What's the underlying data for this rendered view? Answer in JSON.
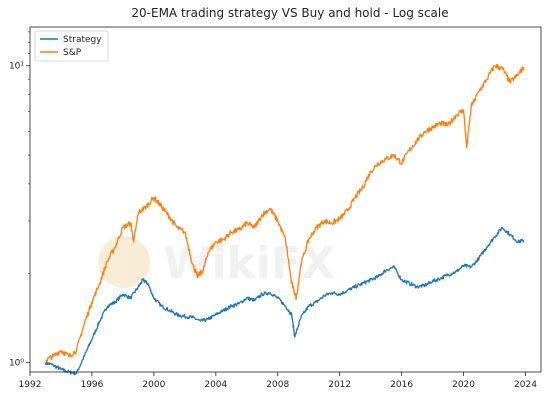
{
  "chart_data": {
    "type": "line",
    "title": "20-EMA trading strategy VS Buy and hold - Log scale",
    "xlabel": "",
    "ylabel": "",
    "xlim": [
      1992.0,
      2025.0
    ],
    "ylim": [
      0.93,
      13.5
    ],
    "y_scale": "log",
    "grid": false,
    "legend_position": "top-left",
    "x_ticks": [
      1992,
      1996,
      2000,
      2004,
      2008,
      2012,
      2016,
      2020,
      2024
    ],
    "x_tick_labels": [
      "1992",
      "1996",
      "2000",
      "2004",
      "2008",
      "2012",
      "2016",
      "2020",
      "2024"
    ],
    "y_ticks": [
      1,
      10
    ],
    "y_tick_labels": [
      "10⁰",
      "10¹"
    ],
    "series": [
      {
        "name": "Strategy",
        "color": "#1f77b4",
        "x": [
          1993.0,
          1993.5,
          1994.0,
          1994.5,
          1995.0,
          1995.5,
          1996.0,
          1996.5,
          1997.0,
          1997.5,
          1998.0,
          1998.5,
          1999.0,
          1999.3,
          1999.6,
          2000.0,
          2000.5,
          2001.0,
          2001.5,
          2002.0,
          2002.5,
          2003.0,
          2003.5,
          2004.0,
          2004.5,
          2005.0,
          2005.5,
          2006.0,
          2006.5,
          2007.0,
          2007.5,
          2008.0,
          2008.5,
          2008.9,
          2009.1,
          2009.5,
          2010.0,
          2010.5,
          2011.0,
          2011.5,
          2012.0,
          2012.5,
          2013.0,
          2013.5,
          2014.0,
          2014.5,
          2015.0,
          2015.5,
          2016.0,
          2016.5,
          2017.0,
          2017.5,
          2018.0,
          2018.5,
          2019.0,
          2019.5,
          2020.0,
          2020.5,
          2021.0,
          2021.5,
          2022.0,
          2022.5,
          2023.0,
          2023.5,
          2023.9
        ],
        "y": [
          1.0,
          0.98,
          0.95,
          0.93,
          0.92,
          1.05,
          1.2,
          1.38,
          1.55,
          1.6,
          1.7,
          1.65,
          1.8,
          1.9,
          1.85,
          1.65,
          1.55,
          1.5,
          1.45,
          1.43,
          1.42,
          1.38,
          1.4,
          1.45,
          1.5,
          1.55,
          1.58,
          1.65,
          1.62,
          1.7,
          1.72,
          1.65,
          1.55,
          1.45,
          1.22,
          1.42,
          1.55,
          1.6,
          1.68,
          1.72,
          1.7,
          1.75,
          1.8,
          1.85,
          1.9,
          1.95,
          2.05,
          2.1,
          1.9,
          1.85,
          1.8,
          1.82,
          1.88,
          1.92,
          1.98,
          2.02,
          2.12,
          2.1,
          2.25,
          2.45,
          2.65,
          2.85,
          2.7,
          2.55,
          2.58
        ]
      },
      {
        "name": "S&P",
        "color": "#ff7f0e",
        "x": [
          1993.0,
          1993.5,
          1994.0,
          1994.5,
          1995.0,
          1995.5,
          1996.0,
          1996.5,
          1997.0,
          1997.5,
          1998.0,
          1998.5,
          1998.7,
          1999.0,
          1999.5,
          2000.0,
          2000.5,
          2001.0,
          2001.5,
          2002.0,
          2002.5,
          2002.8,
          2003.2,
          2003.5,
          2004.0,
          2004.5,
          2005.0,
          2005.5,
          2006.0,
          2006.5,
          2007.0,
          2007.5,
          2008.0,
          2008.5,
          2008.9,
          2009.2,
          2009.5,
          2010.0,
          2010.5,
          2011.0,
          2011.5,
          2012.0,
          2012.5,
          2013.0,
          2013.5,
          2014.0,
          2014.5,
          2015.0,
          2015.5,
          2016.0,
          2016.5,
          2017.0,
          2017.5,
          2018.0,
          2018.5,
          2019.0,
          2019.5,
          2020.0,
          2020.2,
          2020.5,
          2021.0,
          2021.5,
          2022.0,
          2022.5,
          2023.0,
          2023.5,
          2023.9
        ],
        "y": [
          1.02,
          1.05,
          1.1,
          1.05,
          1.1,
          1.35,
          1.6,
          1.85,
          2.2,
          2.45,
          2.85,
          2.95,
          2.55,
          3.2,
          3.35,
          3.6,
          3.35,
          3.1,
          2.85,
          2.75,
          2.15,
          1.95,
          2.05,
          2.35,
          2.55,
          2.6,
          2.75,
          2.8,
          2.95,
          2.85,
          3.15,
          3.3,
          3.0,
          2.6,
          1.85,
          1.65,
          2.15,
          2.6,
          2.85,
          3.0,
          2.95,
          3.05,
          3.25,
          3.6,
          3.9,
          4.4,
          4.7,
          4.85,
          5.0,
          4.7,
          5.2,
          5.6,
          6.0,
          6.2,
          6.4,
          6.3,
          6.8,
          7.1,
          5.3,
          7.3,
          8.2,
          9.0,
          10.0,
          9.8,
          8.8,
          9.3,
          9.9
        ]
      }
    ]
  },
  "legend": {
    "items": [
      {
        "label": "Strategy",
        "color": "#1f77b4"
      },
      {
        "label": "S&P",
        "color": "#ff7f0e"
      }
    ]
  },
  "watermark": {
    "text": "WikiFX"
  }
}
